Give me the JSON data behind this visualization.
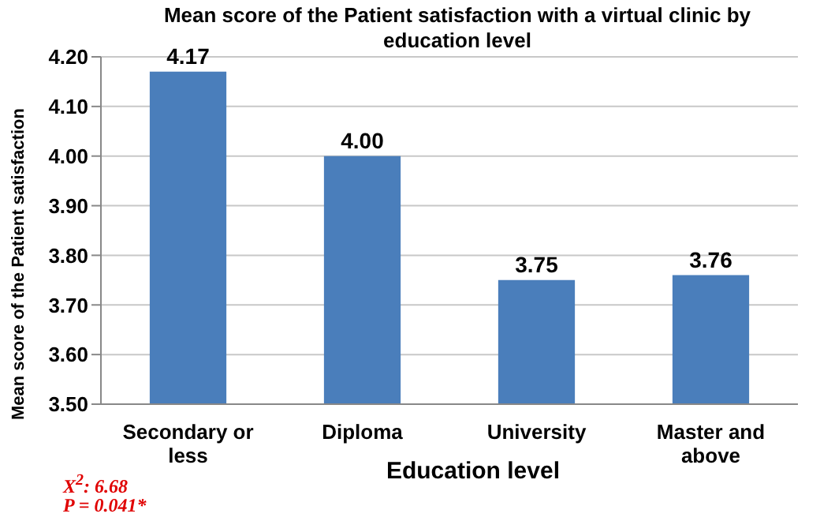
{
  "chart_data": {
    "type": "bar",
    "title": "Mean score of the Patient satisfaction with a virtual clinic by education level",
    "xlabel": "Education level",
    "ylabel": "Mean score of the Patient satisfaction",
    "categories": [
      "Secondary or less",
      "Diploma",
      "University",
      "Master and above"
    ],
    "values": [
      4.17,
      4.0,
      3.75,
      3.76
    ],
    "value_labels": [
      "4.17",
      "4.00",
      "3.75",
      "3.76"
    ],
    "color": "#4a7ebb",
    "ylim": [
      3.5,
      4.2
    ],
    "yticks": [
      {
        "value": 3.5,
        "label": "3.50"
      },
      {
        "value": 3.6,
        "label": "3.60"
      },
      {
        "value": 3.7,
        "label": "3.70"
      },
      {
        "value": 3.8,
        "label": "3.80"
      },
      {
        "value": 3.9,
        "label": "3.90"
      },
      {
        "value": 4.0,
        "label": "4.00"
      },
      {
        "value": 4.1,
        "label": "4.10"
      },
      {
        "value": 4.2,
        "label": "4.20"
      }
    ],
    "grid": "y",
    "legend": false,
    "annotations": [
      "X$^{2}$: 6.68",
      "P = 0.041*"
    ]
  }
}
